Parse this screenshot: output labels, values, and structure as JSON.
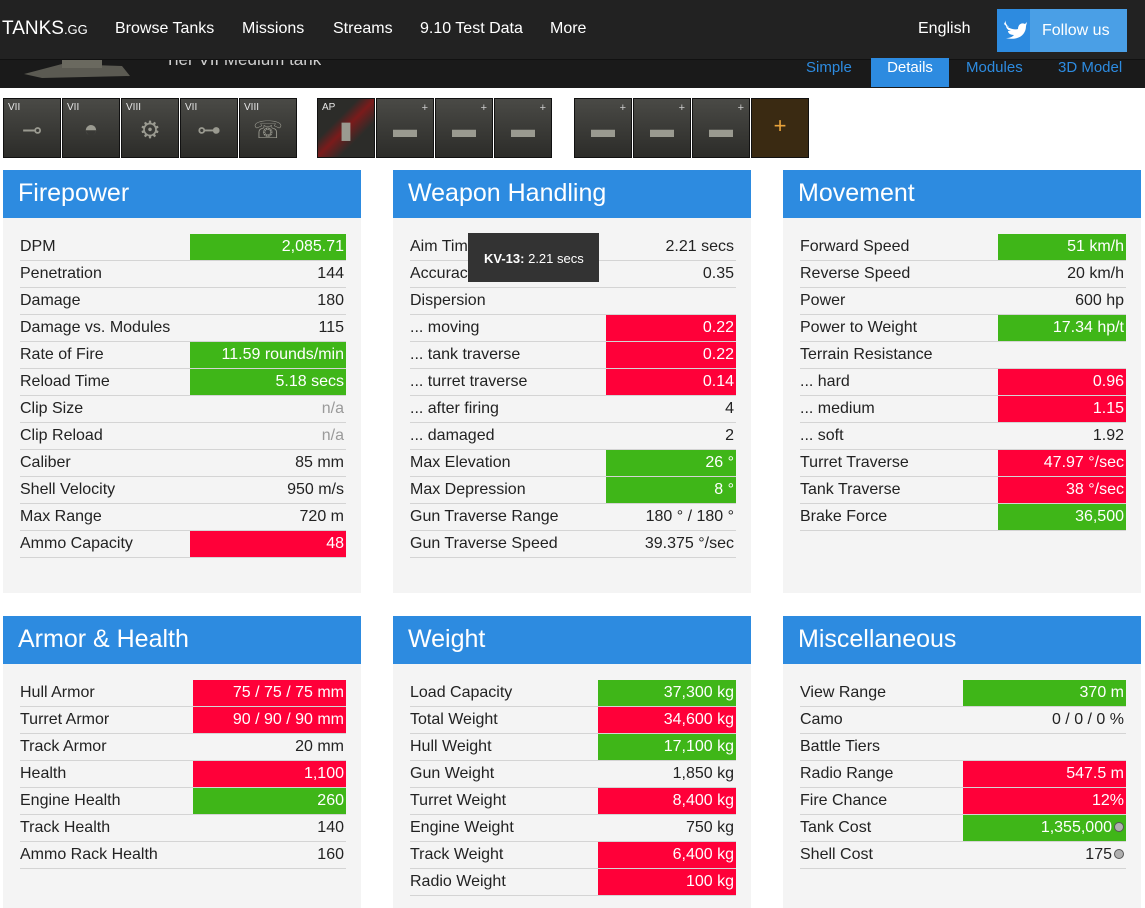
{
  "nav": {
    "logo_main": "TANKS",
    "logo_tld": ".GG",
    "items": [
      "Browse Tanks",
      "Missions",
      "Streams",
      "9.10 Test Data",
      "More"
    ],
    "language": "English",
    "follow": "Follow us"
  },
  "tank": {
    "subtitle": "Tier VII Medium tank"
  },
  "view_tabs": [
    "Simple",
    "Details",
    "Modules",
    "3D Model"
  ],
  "active_tab": "Details",
  "equipment": {
    "modules": [
      {
        "tier": "VII",
        "icon": "gun-icon"
      },
      {
        "tier": "VII",
        "icon": "turret-icon"
      },
      {
        "tier": "VIII",
        "icon": "engine-icon"
      },
      {
        "tier": "VII",
        "icon": "suspension-icon"
      },
      {
        "tier": "VIII",
        "icon": "radio-icon"
      }
    ],
    "ammo_label": "AP"
  },
  "tooltip": {
    "name": "KV-13:",
    "value": "2.21 secs"
  },
  "colors": {
    "accent": "#2d8be0",
    "good": "#3fb618",
    "bad": "#ff0039",
    "nav": "#222222"
  },
  "panels": {
    "firepower": {
      "title": "Firepower",
      "rows": [
        {
          "k": "DPM",
          "v": "2,085.71",
          "s": "good"
        },
        {
          "k": "Penetration",
          "v": "144",
          "s": ""
        },
        {
          "k": "Damage",
          "v": "180",
          "s": ""
        },
        {
          "k": "Damage vs. Modules",
          "v": "115",
          "s": ""
        },
        {
          "k": "Rate of Fire",
          "v": "11.59 rounds/min",
          "s": "good"
        },
        {
          "k": "Reload Time",
          "v": "5.18 secs",
          "s": "good"
        },
        {
          "k": "Clip Size",
          "v": "n/a",
          "s": "na"
        },
        {
          "k": "Clip Reload",
          "v": "n/a",
          "s": "na"
        },
        {
          "k": "Caliber",
          "v": "85 mm",
          "s": ""
        },
        {
          "k": "Shell Velocity",
          "v": "950 m/s",
          "s": ""
        },
        {
          "k": "Max Range",
          "v": "720 m",
          "s": ""
        },
        {
          "k": "Ammo Capacity",
          "v": "48",
          "s": "bad"
        }
      ]
    },
    "weapon_handling": {
      "title": "Weapon Handling",
      "rows": [
        {
          "k": "Aim Time",
          "v": "2.21 secs",
          "s": ""
        },
        {
          "k": "Accuracy",
          "v": "0.35",
          "s": ""
        },
        {
          "k": "Dispersion",
          "v": "",
          "s": ""
        },
        {
          "k": "... moving",
          "v": "0.22",
          "s": "bad"
        },
        {
          "k": "... tank traverse",
          "v": "0.22",
          "s": "bad"
        },
        {
          "k": "... turret traverse",
          "v": "0.14",
          "s": "bad"
        },
        {
          "k": "... after firing",
          "v": "4",
          "s": ""
        },
        {
          "k": "... damaged",
          "v": "2",
          "s": ""
        },
        {
          "k": "Max Elevation",
          "v": "26 °",
          "s": "good"
        },
        {
          "k": "Max Depression",
          "v": "8 °",
          "s": "good"
        },
        {
          "k": "Gun Traverse Range",
          "v": "180 ° / 180 °",
          "s": ""
        },
        {
          "k": "Gun Traverse Speed",
          "v": "39.375 °/sec",
          "s": ""
        }
      ]
    },
    "movement": {
      "title": "Movement",
      "rows": [
        {
          "k": "Forward Speed",
          "v": "51 km/h",
          "s": "good"
        },
        {
          "k": "Reverse Speed",
          "v": "20 km/h",
          "s": ""
        },
        {
          "k": "Power",
          "v": "600 hp",
          "s": ""
        },
        {
          "k": "Power to Weight",
          "v": "17.34 hp/t",
          "s": "good"
        },
        {
          "k": "Terrain Resistance",
          "v": "",
          "s": ""
        },
        {
          "k": "... hard",
          "v": "0.96",
          "s": "bad"
        },
        {
          "k": "... medium",
          "v": "1.15",
          "s": "bad"
        },
        {
          "k": "... soft",
          "v": "1.92",
          "s": ""
        },
        {
          "k": "Turret Traverse",
          "v": "47.97 °/sec",
          "s": "bad"
        },
        {
          "k": "Tank Traverse",
          "v": "38 °/sec",
          "s": "bad"
        },
        {
          "k": "Brake Force",
          "v": "36,500",
          "s": "good"
        }
      ]
    },
    "armor": {
      "title": "Armor & Health",
      "rows": [
        {
          "k": "Hull Armor",
          "v": "75 / 75 / 75 mm",
          "s": "bad"
        },
        {
          "k": "Turret Armor",
          "v": "90 / 90 / 90 mm",
          "s": "bad"
        },
        {
          "k": "Track Armor",
          "v": "20 mm",
          "s": ""
        },
        {
          "k": "Health",
          "v": "1,100",
          "s": "bad"
        },
        {
          "k": "Engine Health",
          "v": "260",
          "s": "good"
        },
        {
          "k": "Track Health",
          "v": "140",
          "s": ""
        },
        {
          "k": "Ammo Rack Health",
          "v": "160",
          "s": ""
        }
      ]
    },
    "weight": {
      "title": "Weight",
      "rows": [
        {
          "k": "Load Capacity",
          "v": "37,300 kg",
          "s": "good"
        },
        {
          "k": "Total Weight",
          "v": "34,600 kg",
          "s": "bad"
        },
        {
          "k": "Hull Weight",
          "v": "17,100 kg",
          "s": "good"
        },
        {
          "k": "Gun Weight",
          "v": "1,850 kg",
          "s": ""
        },
        {
          "k": "Turret Weight",
          "v": "8,400 kg",
          "s": "bad"
        },
        {
          "k": "Engine Weight",
          "v": "750 kg",
          "s": ""
        },
        {
          "k": "Track Weight",
          "v": "6,400 kg",
          "s": "bad"
        },
        {
          "k": "Radio Weight",
          "v": "100 kg",
          "s": "bad"
        }
      ]
    },
    "misc": {
      "title": "Miscellaneous",
      "rows": [
        {
          "k": "View Range",
          "v": "370 m",
          "s": "good"
        },
        {
          "k": "Camo",
          "v": "0 / 0 / 0 %",
          "s": ""
        },
        {
          "k": "Battle Tiers",
          "v": "",
          "s": ""
        },
        {
          "k": "Radio Range",
          "v": "547.5 m",
          "s": "bad"
        },
        {
          "k": "Fire Chance",
          "v": "12%",
          "s": "bad"
        },
        {
          "k": "Tank Cost",
          "v": "1,355,000",
          "s": "good",
          "coin": true
        },
        {
          "k": "Shell Cost",
          "v": "175",
          "s": "",
          "coin": true
        }
      ]
    }
  }
}
